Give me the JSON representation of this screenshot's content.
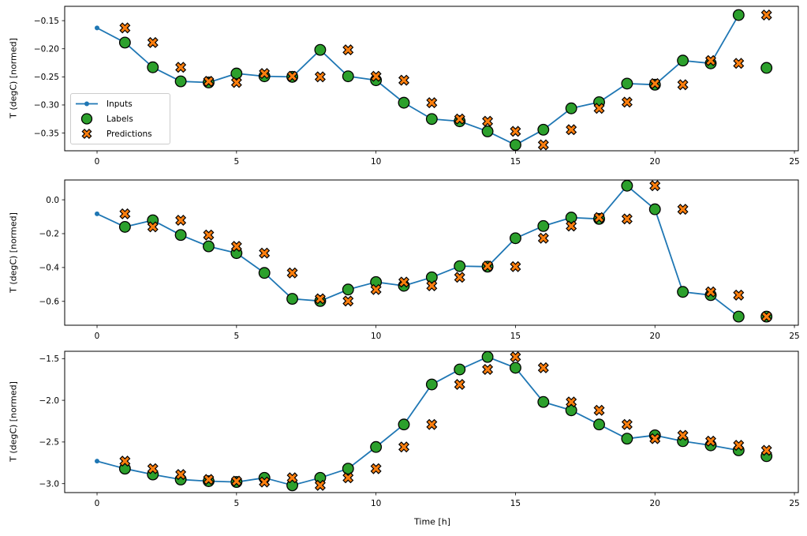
{
  "figure": {
    "xlabel": "Time [h]",
    "ylabel": "T (degC) [normed]",
    "legend": {
      "items": [
        "Inputs",
        "Labels",
        "Predictions"
      ]
    },
    "colors": {
      "inputs_line": "#1f77b4",
      "labels_fill": "#2ca02c",
      "predictions_fill": "#ff7f0e",
      "marker_edge": "#000000",
      "spine": "#000000",
      "legend_border": "#cccccc",
      "background": "#ffffff"
    }
  },
  "chart_data": [
    {
      "type": "line",
      "title": "",
      "xlabel": "",
      "ylabel": "T (degC) [normed]",
      "grid": false,
      "legend_position": "upper-left-inside",
      "xlim": [
        -1.16,
        25.14
      ],
      "ylim": [
        -0.3815,
        -0.1245
      ],
      "xticks": {
        "values": [
          0,
          5,
          10,
          15,
          20,
          25
        ],
        "labels": [
          "0",
          "5",
          "10",
          "15",
          "20",
          "25"
        ]
      },
      "yticks": {
        "values": [
          -0.15,
          -0.2,
          -0.25,
          -0.3,
          -0.35
        ],
        "labels": [
          "−0.15",
          "−0.20",
          "−0.25",
          "−0.30",
          "−0.35"
        ]
      },
      "series": [
        {
          "name": "Inputs",
          "style": "line-dot",
          "x": [
            0,
            1,
            2,
            3,
            4,
            5,
            6,
            7,
            8,
            9,
            10,
            11,
            12,
            13,
            14,
            15,
            16,
            17,
            18,
            19,
            20,
            21,
            22,
            23
          ],
          "y": [
            -0.163,
            -0.189,
            -0.233,
            -0.258,
            -0.26,
            -0.244,
            -0.249,
            -0.25,
            -0.202,
            -0.249,
            -0.256,
            -0.296,
            -0.325,
            -0.329,
            -0.347,
            -0.371,
            -0.344,
            -0.306,
            -0.295,
            -0.262,
            -0.264,
            -0.221,
            -0.226,
            -0.14
          ]
        },
        {
          "name": "Labels",
          "style": "circle",
          "x": [
            1,
            2,
            3,
            4,
            5,
            6,
            7,
            8,
            9,
            10,
            11,
            12,
            13,
            14,
            15,
            16,
            17,
            18,
            19,
            20,
            21,
            22,
            23,
            24
          ],
          "y": [
            -0.189,
            -0.233,
            -0.258,
            -0.26,
            -0.244,
            -0.249,
            -0.25,
            -0.202,
            -0.249,
            -0.256,
            -0.296,
            -0.325,
            -0.329,
            -0.347,
            -0.371,
            -0.344,
            -0.306,
            -0.295,
            -0.262,
            -0.264,
            -0.221,
            -0.226,
            -0.14,
            -0.234
          ]
        },
        {
          "name": "Predictions",
          "style": "x-marker",
          "x": [
            1,
            2,
            3,
            4,
            5,
            6,
            7,
            8,
            9,
            10,
            11,
            12,
            13,
            14,
            15,
            16,
            17,
            18,
            19,
            20,
            21,
            22,
            23,
            24
          ],
          "y": [
            -0.163,
            -0.189,
            -0.233,
            -0.258,
            -0.26,
            -0.244,
            -0.249,
            -0.25,
            -0.202,
            -0.249,
            -0.256,
            -0.296,
            -0.325,
            -0.329,
            -0.347,
            -0.371,
            -0.344,
            -0.306,
            -0.295,
            -0.262,
            -0.264,
            -0.221,
            -0.226,
            -0.14
          ]
        }
      ]
    },
    {
      "type": "line",
      "title": "",
      "xlabel": "",
      "ylabel": "T (degC) [normed]",
      "grid": false,
      "xlim": [
        -1.16,
        25.14
      ],
      "ylim": [
        -0.741,
        0.117
      ],
      "xticks": {
        "values": [
          0,
          5,
          10,
          15,
          20,
          25
        ],
        "labels": [
          "0",
          "5",
          "10",
          "15",
          "20",
          "25"
        ]
      },
      "yticks": {
        "values": [
          0.0,
          -0.2,
          -0.4,
          -0.6
        ],
        "labels": [
          "0.0",
          "−0.2",
          "−0.4",
          "−0.6"
        ]
      },
      "series": [
        {
          "name": "Inputs",
          "style": "line-dot",
          "x": [
            0,
            1,
            2,
            3,
            4,
            5,
            6,
            7,
            8,
            9,
            10,
            11,
            12,
            13,
            14,
            15,
            16,
            17,
            18,
            19,
            20,
            21,
            22,
            23
          ],
          "y": [
            -0.083,
            -0.16,
            -0.121,
            -0.208,
            -0.275,
            -0.315,
            -0.432,
            -0.585,
            -0.598,
            -0.53,
            -0.486,
            -0.508,
            -0.458,
            -0.392,
            -0.395,
            -0.227,
            -0.155,
            -0.105,
            -0.113,
            0.083,
            -0.056,
            -0.544,
            -0.563,
            -0.69
          ]
        },
        {
          "name": "Labels",
          "style": "circle",
          "x": [
            1,
            2,
            3,
            4,
            5,
            6,
            7,
            8,
            9,
            10,
            11,
            12,
            13,
            14,
            15,
            16,
            17,
            18,
            19,
            20,
            21,
            22,
            23,
            24
          ],
          "y": [
            -0.16,
            -0.121,
            -0.208,
            -0.275,
            -0.315,
            -0.432,
            -0.585,
            -0.598,
            -0.53,
            -0.486,
            -0.508,
            -0.458,
            -0.392,
            -0.395,
            -0.227,
            -0.155,
            -0.105,
            -0.113,
            0.083,
            -0.056,
            -0.544,
            -0.563,
            -0.69,
            -0.69
          ]
        },
        {
          "name": "Predictions",
          "style": "x-marker",
          "x": [
            1,
            2,
            3,
            4,
            5,
            6,
            7,
            8,
            9,
            10,
            11,
            12,
            13,
            14,
            15,
            16,
            17,
            18,
            19,
            20,
            21,
            22,
            23,
            24
          ],
          "y": [
            -0.083,
            -0.16,
            -0.121,
            -0.208,
            -0.275,
            -0.315,
            -0.432,
            -0.585,
            -0.598,
            -0.53,
            -0.486,
            -0.508,
            -0.458,
            -0.392,
            -0.395,
            -0.227,
            -0.155,
            -0.105,
            -0.113,
            0.083,
            -0.056,
            -0.544,
            -0.563,
            -0.69
          ]
        }
      ]
    },
    {
      "type": "line",
      "title": "",
      "xlabel": "Time [h]",
      "ylabel": "T (degC) [normed]",
      "grid": false,
      "xlim": [
        -1.16,
        25.14
      ],
      "ylim": [
        -3.107,
        -1.412
      ],
      "xticks": {
        "values": [
          0,
          5,
          10,
          15,
          20,
          25
        ],
        "labels": [
          "0",
          "5",
          "10",
          "15",
          "20",
          "25"
        ]
      },
      "yticks": {
        "values": [
          -1.5,
          -2.0,
          -2.5,
          -3.0
        ],
        "labels": [
          "−1.5",
          "−2.0",
          "−2.5",
          "−3.0"
        ]
      },
      "series": [
        {
          "name": "Inputs",
          "style": "line-dot",
          "x": [
            0,
            1,
            2,
            3,
            4,
            5,
            6,
            7,
            8,
            9,
            10,
            11,
            12,
            13,
            14,
            15,
            16,
            17,
            18,
            19,
            20,
            21,
            22,
            23
          ],
          "y": [
            -2.73,
            -2.82,
            -2.89,
            -2.95,
            -2.97,
            -2.98,
            -2.93,
            -3.02,
            -2.93,
            -2.82,
            -2.56,
            -2.29,
            -1.81,
            -1.63,
            -1.48,
            -1.61,
            -2.02,
            -2.12,
            -2.29,
            -2.46,
            -2.42,
            -2.49,
            -2.54,
            -2.6
          ]
        },
        {
          "name": "Labels",
          "style": "circle",
          "x": [
            1,
            2,
            3,
            4,
            5,
            6,
            7,
            8,
            9,
            10,
            11,
            12,
            13,
            14,
            15,
            16,
            17,
            18,
            19,
            20,
            21,
            22,
            23,
            24
          ],
          "y": [
            -2.82,
            -2.89,
            -2.95,
            -2.97,
            -2.98,
            -2.93,
            -3.02,
            -2.93,
            -2.82,
            -2.56,
            -2.29,
            -1.81,
            -1.63,
            -1.48,
            -1.61,
            -2.02,
            -2.12,
            -2.29,
            -2.46,
            -2.42,
            -2.49,
            -2.54,
            -2.6,
            -2.67
          ]
        },
        {
          "name": "Predictions",
          "style": "x-marker",
          "x": [
            1,
            2,
            3,
            4,
            5,
            6,
            7,
            8,
            9,
            10,
            11,
            12,
            13,
            14,
            15,
            16,
            17,
            18,
            19,
            20,
            21,
            22,
            23,
            24
          ],
          "y": [
            -2.73,
            -2.82,
            -2.89,
            -2.95,
            -2.97,
            -2.98,
            -2.93,
            -3.02,
            -2.93,
            -2.82,
            -2.56,
            -2.29,
            -1.81,
            -1.63,
            -1.48,
            -1.61,
            -2.02,
            -2.12,
            -2.29,
            -2.46,
            -2.42,
            -2.49,
            -2.54,
            -2.6
          ]
        }
      ]
    }
  ]
}
